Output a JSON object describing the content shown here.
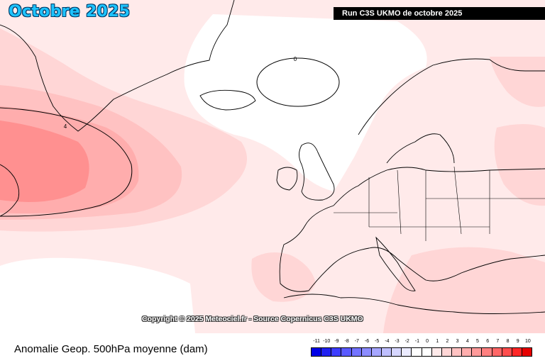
{
  "title": "Octobre 2025",
  "run_label": "Run C3S UKMO de octobre 2025",
  "copyright": "Copyright © 2025 Meteociel.fr - Source Copernicus C3S UKMO",
  "field_label": "Anomalie Geop. 500hPa moyenne (dam)",
  "contour_labels": {
    "positive": "4",
    "zero": "0"
  },
  "legend": {
    "ticks": [
      "-11",
      "-10",
      "-9",
      "-8",
      "-7",
      "-6",
      "-5",
      "-4",
      "-3",
      "-2",
      "-1",
      "0",
      "1",
      "2",
      "3",
      "4",
      "5",
      "6",
      "7",
      "8",
      "9",
      "10"
    ],
    "colors": [
      "#0000e6",
      "#2020f0",
      "#3d3dff",
      "#5a5aff",
      "#7373ff",
      "#8c8cff",
      "#a6a6ff",
      "#bfbfff",
      "#d6d6ff",
      "#ebebff",
      "#ffffff",
      "#ffffff",
      "#ffeaea",
      "#ffd6d6",
      "#ffc2c2",
      "#ffadad",
      "#ff9a9a",
      "#ff8080",
      "#ff6666",
      "#ff4d4d",
      "#ff2626",
      "#e60000"
    ]
  },
  "colors": {
    "shade1": "#ffeaea",
    "shade2": "#ffd6d6",
    "shade3": "#ffc2c2",
    "shade4": "#ffadad",
    "shade5": "#ff8c8c",
    "neutral": "#ffffff"
  }
}
